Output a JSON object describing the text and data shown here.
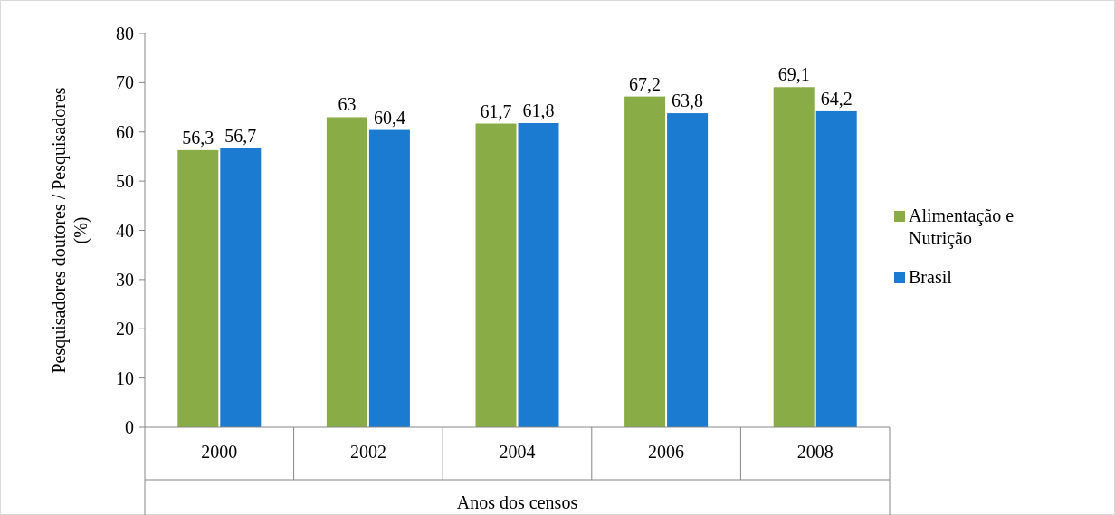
{
  "chart_data": {
    "type": "bar",
    "xlabel": "Anos dos censos",
    "ylabel": "Pesquisadores doutores / Pesquisadores (%)",
    "categories": [
      "2000",
      "2002",
      "2004",
      "2006",
      "2008"
    ],
    "series": [
      {
        "name": "Alimentação e Nutrição",
        "color": "#8aac46",
        "values": [
          56.3,
          63,
          61.7,
          67.2,
          69.1
        ],
        "value_labels": [
          "56,3",
          "63",
          "61,7",
          "67,2",
          "69,1"
        ]
      },
      {
        "name": "Brasil",
        "color": "#1b7bd0",
        "values": [
          56.7,
          60.4,
          61.8,
          63.8,
          64.2
        ],
        "value_labels": [
          "56,7",
          "60,4",
          "61,8",
          "63,8",
          "64,2"
        ]
      }
    ],
    "ylim": [
      0,
      80
    ],
    "yticks": [
      0,
      10,
      20,
      30,
      40,
      50,
      60,
      70,
      80
    ],
    "grid": false,
    "legend": "right"
  }
}
